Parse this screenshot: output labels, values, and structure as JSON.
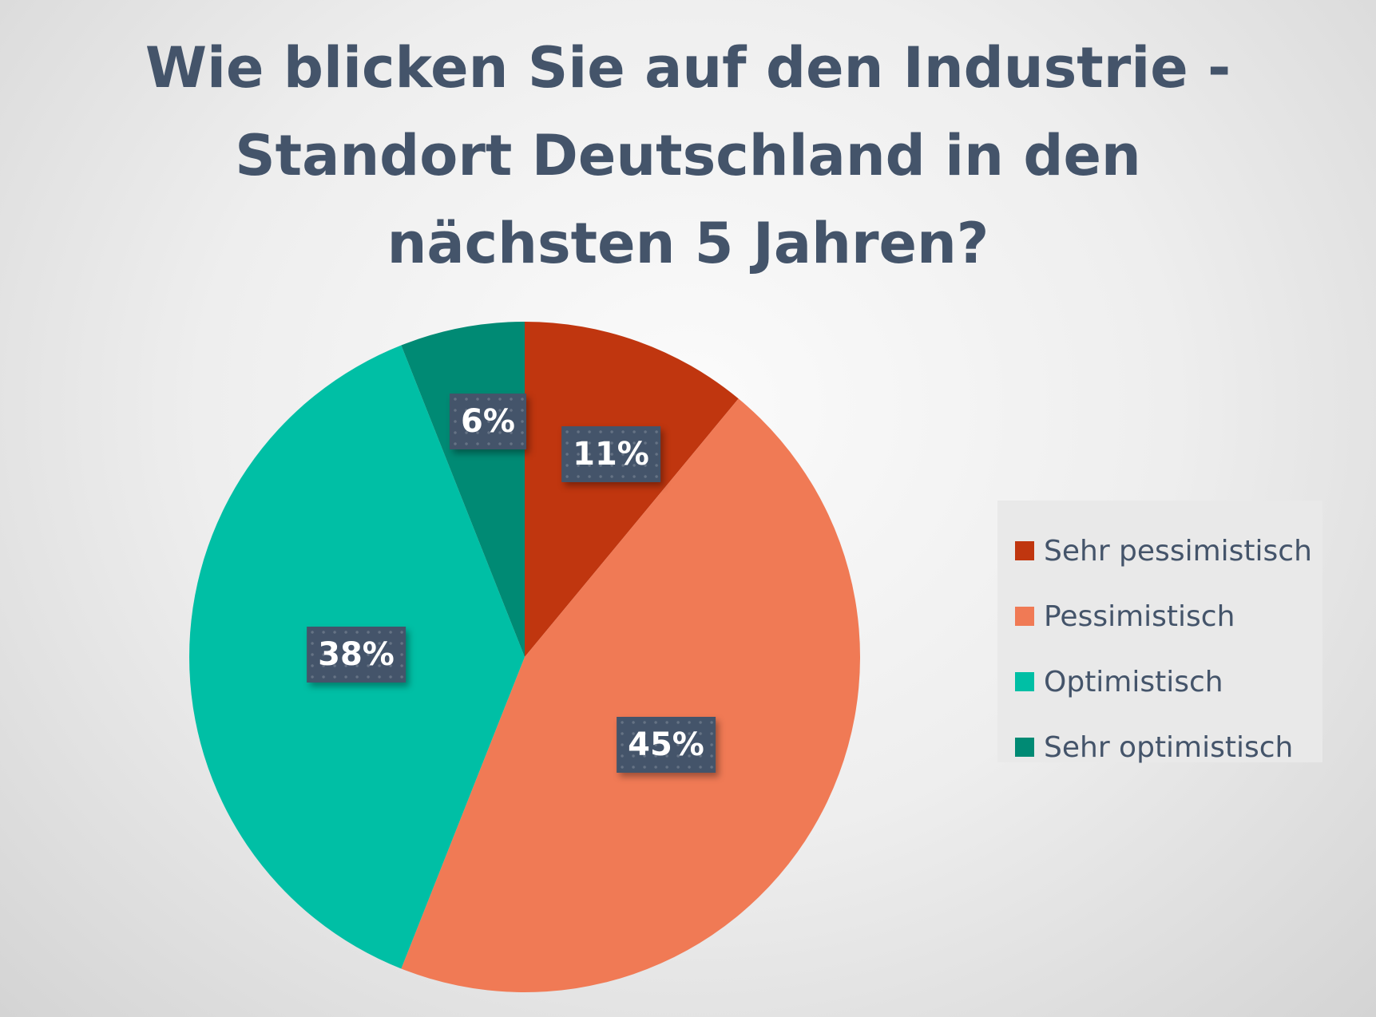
{
  "chart_data": {
    "type": "pie",
    "title": "Wie blicken Sie auf den Industrie - Standort Deutschland in den nächsten 5 Jahren?",
    "title_lines": [
      "Wie blicken Sie auf den Industrie -",
      "Standort Deutschland in den",
      "nächsten 5 Jahren?"
    ],
    "legend_position": "right",
    "slices": [
      {
        "label": "Sehr pessimistisch",
        "value": 11,
        "data_label": "11%",
        "color": "#c0360f"
      },
      {
        "label": "Pessimistisch",
        "value": 45,
        "data_label": "45%",
        "color": "#f07a55"
      },
      {
        "label": "Optimistisch",
        "value": 38,
        "data_label": "38%",
        "color": "#00bfa5"
      },
      {
        "label": "Sehr optimistisch",
        "value": 6,
        "data_label": "6%",
        "color": "#008a74"
      }
    ]
  }
}
